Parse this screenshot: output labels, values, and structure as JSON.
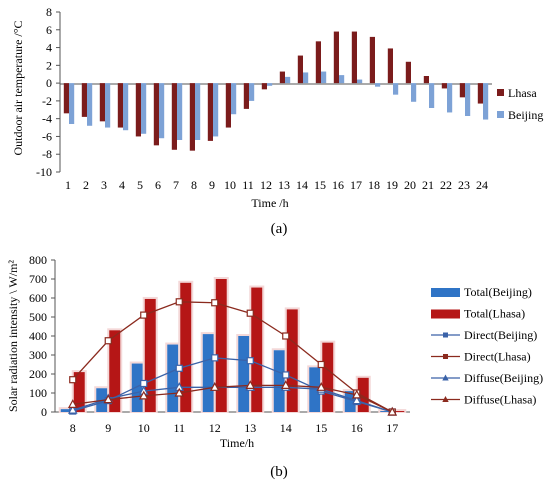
{
  "chart_data": [
    {
      "type": "bar",
      "caption": "(a)",
      "xlabel": "Time /h",
      "ylabel": "Outdoor air temperature /°C",
      "ylim": [
        -10,
        8
      ],
      "yticks": [
        "8",
        "6",
        "4",
        "2",
        "0",
        "-2",
        "-4",
        "-6",
        "-8",
        "-10"
      ],
      "categories": [
        "1",
        "2",
        "3",
        "4",
        "5",
        "6",
        "7",
        "8",
        "9",
        "10",
        "11",
        "12",
        "13",
        "14",
        "15",
        "16",
        "17",
        "18",
        "19",
        "20",
        "21",
        "22",
        "23",
        "24"
      ],
      "series": [
        {
          "name": "Lhasa",
          "color": "#7b1c1c",
          "values": [
            -3.4,
            -3.8,
            -4.3,
            -5.0,
            -6.0,
            -7.0,
            -7.5,
            -7.6,
            -6.5,
            -5.0,
            -2.9,
            -0.7,
            1.3,
            3.1,
            4.7,
            5.8,
            5.8,
            5.2,
            3.9,
            2.4,
            0.8,
            -0.6,
            -1.6,
            -2.3
          ]
        },
        {
          "name": "Beijing",
          "color": "#7da2d6",
          "values": [
            -4.6,
            -4.8,
            -5.0,
            -5.3,
            -5.7,
            -6.2,
            -6.4,
            -6.4,
            -6.0,
            -3.5,
            -2.0,
            -0.3,
            0.7,
            1.2,
            1.3,
            0.9,
            0.4,
            -0.4,
            -1.3,
            -2.1,
            -2.8,
            -3.3,
            -3.7,
            -4.1
          ]
        }
      ]
    },
    {
      "type": "bar",
      "caption": "(b)",
      "xlabel": "Time/h",
      "ylabel": "Solar radiation intensity \\ W/m²",
      "ylim": [
        0,
        800
      ],
      "yticks": [
        "800",
        "700",
        "600",
        "500",
        "400",
        "300",
        "200",
        "100",
        "0"
      ],
      "categories": [
        "8",
        "9",
        "10",
        "11",
        "12",
        "13",
        "14",
        "15",
        "16",
        "17"
      ],
      "bar_series": [
        {
          "name": "Total(Beijing)",
          "color": "#2f74c6",
          "values": [
            15,
            125,
            255,
            355,
            410,
            400,
            325,
            235,
            110,
            5
          ]
        },
        {
          "name": "Total(Lhasa)",
          "color": "#b51616",
          "values": [
            210,
            430,
            595,
            680,
            700,
            655,
            540,
            365,
            180,
            5
          ]
        }
      ],
      "line_series": [
        {
          "name": "Direct(Beijing)",
          "color": "#3a62a8",
          "marker": "square",
          "values": [
            5,
            60,
            150,
            230,
            285,
            270,
            195,
            110,
            55,
            0
          ]
        },
        {
          "name": "Direct(Lhasa)",
          "color": "#8b2a1e",
          "marker": "square",
          "values": [
            170,
            375,
            510,
            580,
            575,
            520,
            400,
            250,
            100,
            0
          ]
        },
        {
          "name": "Diffuse(Beijing)",
          "color": "#3a62a8",
          "marker": "triangle",
          "values": [
            10,
            70,
            110,
            130,
            130,
            130,
            130,
            120,
            60,
            0
          ]
        },
        {
          "name": "Diffuse(Lhasa)",
          "color": "#8b2a1e",
          "marker": "triangle",
          "values": [
            40,
            65,
            85,
            100,
            130,
            140,
            140,
            130,
            90,
            0
          ]
        }
      ]
    }
  ]
}
